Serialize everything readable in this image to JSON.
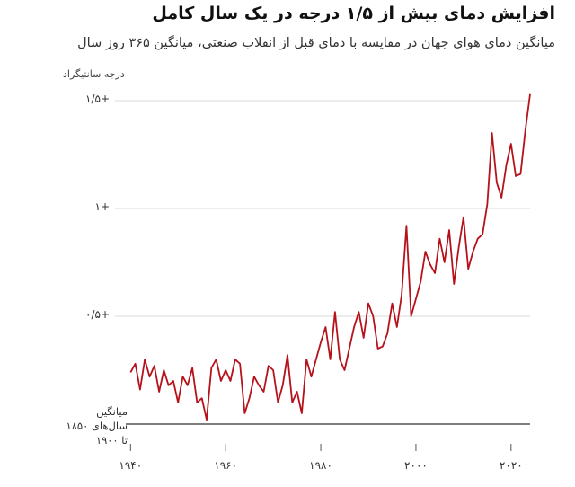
{
  "chart_data": {
    "type": "line",
    "title": "افزایش دمای بیش از ۱/۵ درجه در یک سال کامل",
    "subtitle": "میانگین دمای هوای جهان در مقایسه با دمای قبل از انقلاب صنعتی، میانگین ۳۶۵ روز سال",
    "y_label": "درجه سانتیگراد",
    "x": [
      1940,
      1941,
      1942,
      1943,
      1944,
      1945,
      1946,
      1947,
      1948,
      1949,
      1950,
      1951,
      1952,
      1953,
      1954,
      1955,
      1956,
      1957,
      1958,
      1959,
      1960,
      1961,
      1962,
      1963,
      1964,
      1965,
      1966,
      1967,
      1968,
      1969,
      1970,
      1971,
      1972,
      1973,
      1974,
      1975,
      1976,
      1977,
      1978,
      1979,
      1980,
      1981,
      1982,
      1983,
      1984,
      1985,
      1986,
      1987,
      1988,
      1989,
      1990,
      1991,
      1992,
      1993,
      1994,
      1995,
      1996,
      1997,
      1998,
      1999,
      2000,
      2001,
      2002,
      2003,
      2004,
      2005,
      2006,
      2007,
      2008,
      2009,
      2010,
      2011,
      2012,
      2013,
      2014,
      2015,
      2016,
      2017,
      2018,
      2019,
      2020,
      2021,
      2022,
      2023,
      2024
    ],
    "series": [
      {
        "name": "میانگین ۳۶۵ روز",
        "color": "#b5121b",
        "values": [
          0.24,
          0.28,
          0.16,
          0.3,
          0.22,
          0.27,
          0.15,
          0.25,
          0.18,
          0.2,
          0.1,
          0.22,
          0.18,
          0.26,
          0.1,
          0.12,
          0.02,
          0.26,
          0.3,
          0.2,
          0.25,
          0.2,
          0.3,
          0.28,
          0.05,
          0.12,
          0.22,
          0.18,
          0.15,
          0.27,
          0.25,
          0.1,
          0.18,
          0.32,
          0.1,
          0.15,
          0.05,
          0.3,
          0.22,
          0.3,
          0.38,
          0.45,
          0.3,
          0.52,
          0.3,
          0.25,
          0.35,
          0.45,
          0.52,
          0.4,
          0.56,
          0.5,
          0.35,
          0.36,
          0.42,
          0.56,
          0.45,
          0.6,
          0.92,
          0.5,
          0.58,
          0.66,
          0.8,
          0.74,
          0.7,
          0.86,
          0.75,
          0.9,
          0.65,
          0.82,
          0.96,
          0.72,
          0.8,
          0.86,
          0.88,
          1.02,
          1.35,
          1.12,
          1.05,
          1.2,
          1.3,
          1.15,
          1.16,
          1.36,
          1.53
        ]
      }
    ],
    "xlim": [
      1939,
      2024
    ],
    "ylim": [
      0,
      1.55
    ],
    "xticks": [
      {
        "value": 1940,
        "label": "۱۹۴۰"
      },
      {
        "value": 1960,
        "label": "۱۹۶۰"
      },
      {
        "value": 1980,
        "label": "۱۹۸۰"
      },
      {
        "value": 2000,
        "label": "۲۰۰۰"
      },
      {
        "value": 2020,
        "label": "۲۰۲۰"
      }
    ],
    "yticks": [
      {
        "value": 0,
        "label": "میانگین سال‌های ۱۸۵۰ تا ۱۹۰۰"
      },
      {
        "value": 0.5,
        "label": "+۰/۵"
      },
      {
        "value": 1,
        "label": "+۱"
      },
      {
        "value": 1.5,
        "label": "+۱/۵"
      }
    ],
    "grid": true
  }
}
